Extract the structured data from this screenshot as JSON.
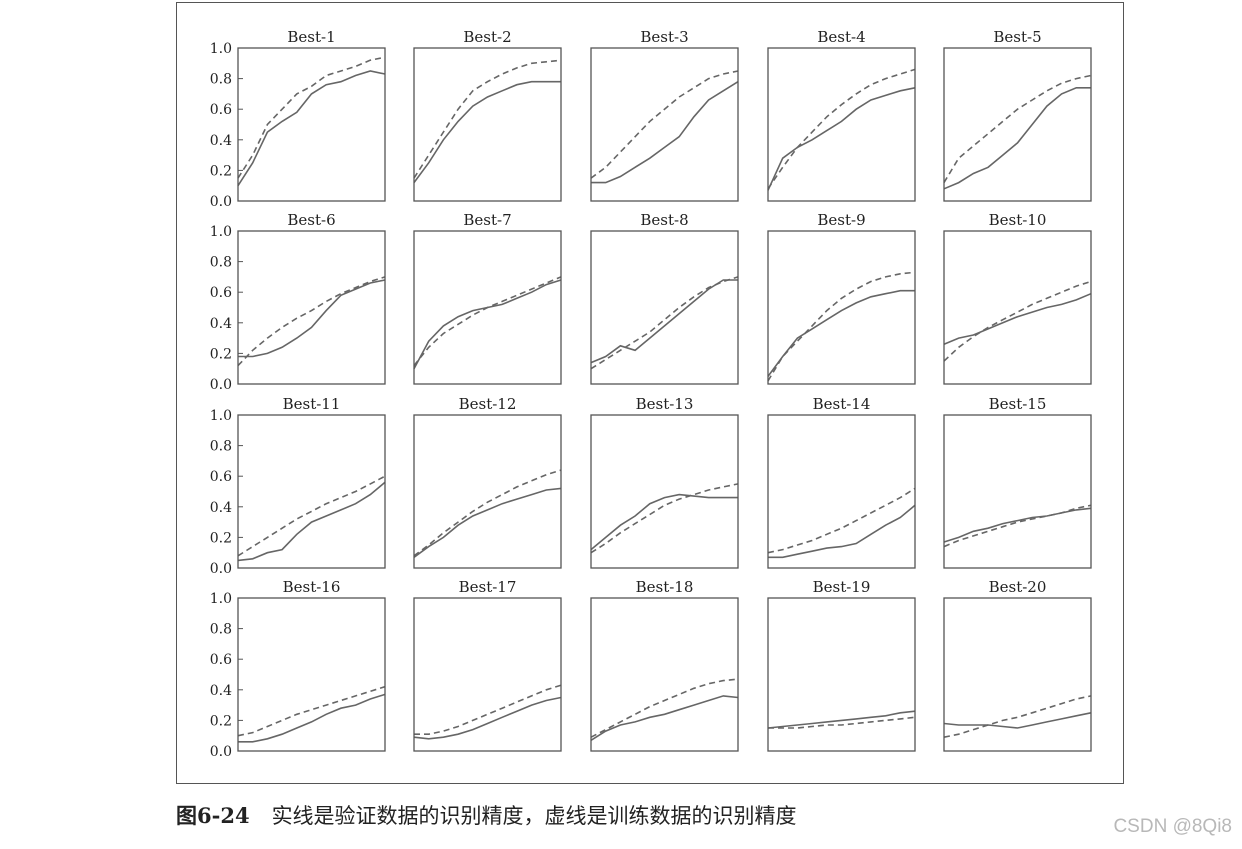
{
  "caption": {
    "number": "图6-24",
    "text": "实线是验证数据的识别精度，虚线是训练数据的识别精度"
  },
  "watermark": "CSDN @8Qi8",
  "colors": {
    "line": "#666666",
    "frame": "#555555"
  },
  "chart_data": {
    "type": "line",
    "layout": "4x5 grid of small multiples",
    "ylim": [
      0,
      1.0
    ],
    "yticks": [
      "0.0",
      "0.2",
      "0.4",
      "0.6",
      "0.8",
      "1.0"
    ],
    "x": [
      0,
      1,
      2,
      3,
      4,
      5,
      6,
      7,
      8,
      9,
      10
    ],
    "series_styles": {
      "validation": "solid",
      "train": "dashed"
    },
    "charts": [
      {
        "title": "Best-1",
        "validation": [
          0.1,
          0.25,
          0.45,
          0.52,
          0.58,
          0.7,
          0.76,
          0.78,
          0.82,
          0.85,
          0.83
        ],
        "train": [
          0.15,
          0.3,
          0.5,
          0.6,
          0.7,
          0.75,
          0.82,
          0.85,
          0.88,
          0.92,
          0.94
        ]
      },
      {
        "title": "Best-2",
        "validation": [
          0.12,
          0.25,
          0.4,
          0.52,
          0.62,
          0.68,
          0.72,
          0.76,
          0.78,
          0.78,
          0.78
        ],
        "train": [
          0.15,
          0.3,
          0.45,
          0.6,
          0.72,
          0.78,
          0.83,
          0.87,
          0.9,
          0.91,
          0.92
        ]
      },
      {
        "title": "Best-3",
        "validation": [
          0.12,
          0.12,
          0.16,
          0.22,
          0.28,
          0.35,
          0.42,
          0.55,
          0.66,
          0.72,
          0.78
        ],
        "train": [
          0.15,
          0.22,
          0.32,
          0.42,
          0.52,
          0.6,
          0.68,
          0.74,
          0.8,
          0.83,
          0.85
        ]
      },
      {
        "title": "Best-4",
        "validation": [
          0.07,
          0.28,
          0.35,
          0.4,
          0.46,
          0.52,
          0.6,
          0.66,
          0.69,
          0.72,
          0.74
        ],
        "train": [
          0.08,
          0.22,
          0.35,
          0.45,
          0.55,
          0.63,
          0.7,
          0.76,
          0.8,
          0.83,
          0.86
        ]
      },
      {
        "title": "Best-5",
        "validation": [
          0.08,
          0.12,
          0.18,
          0.22,
          0.3,
          0.38,
          0.5,
          0.62,
          0.7,
          0.74,
          0.74
        ],
        "train": [
          0.12,
          0.28,
          0.36,
          0.44,
          0.52,
          0.6,
          0.66,
          0.72,
          0.77,
          0.8,
          0.82
        ]
      },
      {
        "title": "Best-6",
        "validation": [
          0.18,
          0.18,
          0.2,
          0.24,
          0.3,
          0.37,
          0.48,
          0.58,
          0.62,
          0.66,
          0.68
        ],
        "train": [
          0.12,
          0.22,
          0.3,
          0.37,
          0.43,
          0.48,
          0.54,
          0.59,
          0.63,
          0.67,
          0.7
        ]
      },
      {
        "title": "Best-7",
        "validation": [
          0.1,
          0.28,
          0.38,
          0.44,
          0.48,
          0.5,
          0.52,
          0.56,
          0.6,
          0.65,
          0.68
        ],
        "train": [
          0.12,
          0.24,
          0.33,
          0.39,
          0.45,
          0.5,
          0.54,
          0.58,
          0.62,
          0.66,
          0.7
        ]
      },
      {
        "title": "Best-8",
        "validation": [
          0.14,
          0.18,
          0.25,
          0.22,
          0.3,
          0.38,
          0.46,
          0.54,
          0.62,
          0.68,
          0.68
        ],
        "train": [
          0.1,
          0.16,
          0.22,
          0.28,
          0.34,
          0.42,
          0.5,
          0.57,
          0.63,
          0.67,
          0.7
        ]
      },
      {
        "title": "Best-9",
        "validation": [
          0.05,
          0.18,
          0.3,
          0.36,
          0.42,
          0.48,
          0.53,
          0.57,
          0.59,
          0.61,
          0.61
        ],
        "train": [
          0.02,
          0.18,
          0.28,
          0.38,
          0.48,
          0.56,
          0.62,
          0.67,
          0.7,
          0.72,
          0.73
        ]
      },
      {
        "title": "Best-10",
        "validation": [
          0.26,
          0.3,
          0.32,
          0.36,
          0.4,
          0.44,
          0.47,
          0.5,
          0.52,
          0.55,
          0.59
        ],
        "train": [
          0.15,
          0.24,
          0.31,
          0.37,
          0.42,
          0.47,
          0.52,
          0.56,
          0.6,
          0.64,
          0.67
        ]
      },
      {
        "title": "Best-11",
        "validation": [
          0.05,
          0.06,
          0.1,
          0.12,
          0.22,
          0.3,
          0.34,
          0.38,
          0.42,
          0.48,
          0.56
        ],
        "train": [
          0.08,
          0.14,
          0.2,
          0.26,
          0.32,
          0.37,
          0.42,
          0.46,
          0.5,
          0.55,
          0.6
        ]
      },
      {
        "title": "Best-12",
        "validation": [
          0.07,
          0.14,
          0.2,
          0.28,
          0.34,
          0.38,
          0.42,
          0.45,
          0.48,
          0.51,
          0.52
        ],
        "train": [
          0.08,
          0.15,
          0.23,
          0.3,
          0.37,
          0.43,
          0.48,
          0.53,
          0.57,
          0.61,
          0.64
        ]
      },
      {
        "title": "Best-13",
        "validation": [
          0.12,
          0.2,
          0.28,
          0.34,
          0.42,
          0.46,
          0.48,
          0.47,
          0.46,
          0.46,
          0.46
        ],
        "train": [
          0.1,
          0.16,
          0.23,
          0.29,
          0.35,
          0.41,
          0.45,
          0.48,
          0.51,
          0.53,
          0.55
        ]
      },
      {
        "title": "Best-14",
        "validation": [
          0.07,
          0.07,
          0.09,
          0.11,
          0.13,
          0.14,
          0.16,
          0.22,
          0.28,
          0.33,
          0.41
        ],
        "train": [
          0.1,
          0.12,
          0.15,
          0.18,
          0.22,
          0.26,
          0.31,
          0.36,
          0.41,
          0.46,
          0.52
        ]
      },
      {
        "title": "Best-15",
        "validation": [
          0.17,
          0.2,
          0.24,
          0.26,
          0.29,
          0.31,
          0.33,
          0.34,
          0.36,
          0.38,
          0.39
        ],
        "train": [
          0.14,
          0.18,
          0.21,
          0.24,
          0.27,
          0.3,
          0.32,
          0.34,
          0.36,
          0.39,
          0.41
        ]
      },
      {
        "title": "Best-16",
        "validation": [
          0.06,
          0.06,
          0.08,
          0.11,
          0.15,
          0.19,
          0.24,
          0.28,
          0.3,
          0.34,
          0.37
        ],
        "train": [
          0.1,
          0.12,
          0.16,
          0.2,
          0.24,
          0.27,
          0.3,
          0.33,
          0.36,
          0.39,
          0.42
        ]
      },
      {
        "title": "Best-17",
        "validation": [
          0.09,
          0.08,
          0.09,
          0.11,
          0.14,
          0.18,
          0.22,
          0.26,
          0.3,
          0.33,
          0.35
        ],
        "train": [
          0.11,
          0.11,
          0.13,
          0.16,
          0.2,
          0.24,
          0.28,
          0.32,
          0.36,
          0.4,
          0.43
        ]
      },
      {
        "title": "Best-18",
        "validation": [
          0.07,
          0.13,
          0.17,
          0.19,
          0.22,
          0.24,
          0.27,
          0.3,
          0.33,
          0.36,
          0.35
        ],
        "train": [
          0.09,
          0.14,
          0.19,
          0.24,
          0.29,
          0.33,
          0.37,
          0.41,
          0.44,
          0.46,
          0.47
        ]
      },
      {
        "title": "Best-19",
        "validation": [
          0.15,
          0.16,
          0.17,
          0.18,
          0.19,
          0.2,
          0.21,
          0.22,
          0.23,
          0.25,
          0.26
        ],
        "train": [
          0.15,
          0.15,
          0.15,
          0.16,
          0.17,
          0.17,
          0.18,
          0.19,
          0.2,
          0.21,
          0.22
        ]
      },
      {
        "title": "Best-20",
        "validation": [
          0.18,
          0.17,
          0.17,
          0.17,
          0.16,
          0.15,
          0.17,
          0.19,
          0.21,
          0.23,
          0.25
        ],
        "train": [
          0.09,
          0.11,
          0.14,
          0.17,
          0.2,
          0.22,
          0.25,
          0.28,
          0.31,
          0.34,
          0.36
        ]
      }
    ]
  }
}
